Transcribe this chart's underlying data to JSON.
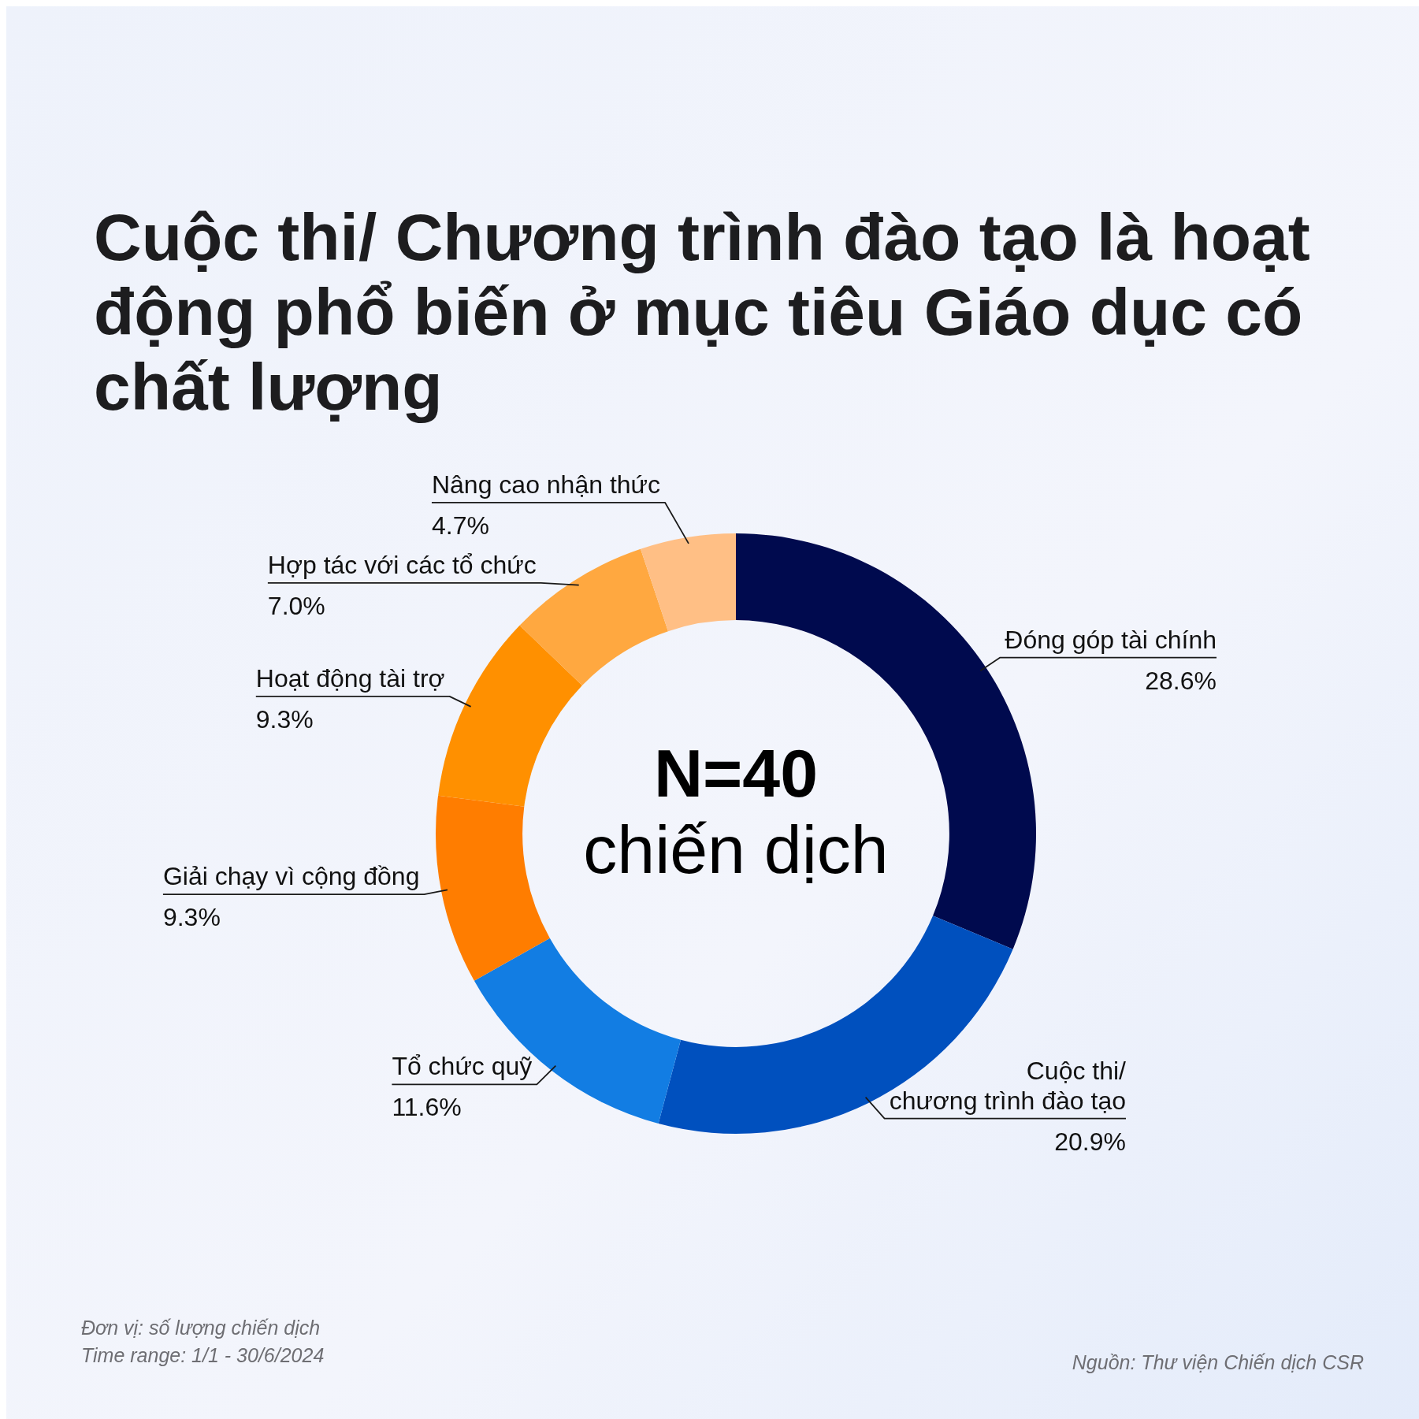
{
  "chart_data": {
    "type": "donut",
    "title": "Cuộc thi/ Chương trình đào tạo là hoạt động phổ biến ở mục tiêu Giáo dục có chất lượng",
    "categories": [
      "Đóng góp tài chính",
      "Cuộc thi/\nchương trình đào tạo",
      "Tổ chức quỹ",
      "Giải chạy vì cộng đồng",
      "Hoạt động tài trợ",
      "Hợp tác với các tổ chức",
      "Nâng cao nhận thức"
    ],
    "values": [
      28.6,
      20.9,
      11.6,
      9.3,
      9.3,
      7.0,
      4.7
    ],
    "colors": [
      "#000a4e",
      "#0050be",
      "#127de3",
      "#ff7d00",
      "#ff9000",
      "#ffa840",
      "#ffbf85"
    ],
    "value_labels": [
      "28.6%",
      "20.9%",
      "11.6%",
      "9.3%",
      "9.3%",
      "7.0%",
      "4.7%"
    ],
    "annotations": [
      "N=40",
      "chiến dịch",
      "Đơn vị: số lượng chiến dịch",
      "Time range: 1/1 - 30/6/2024",
      "Nguồn: Thư viện Chiến dịch CSR"
    ]
  }
}
